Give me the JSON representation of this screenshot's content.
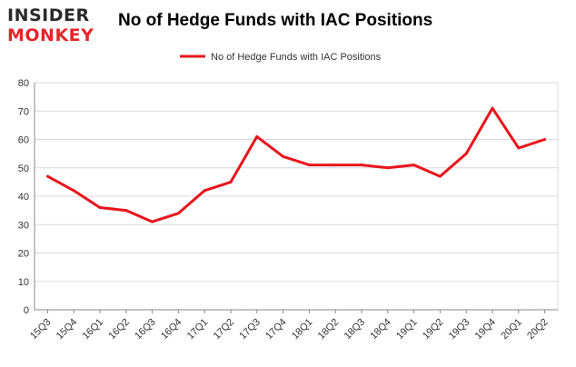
{
  "logo": {
    "top_text": "INSIDER",
    "bottom_text": "MONKEY"
  },
  "chart_data": {
    "type": "line",
    "title": "No of Hedge Funds with IAC Positions",
    "categories": [
      "15Q3",
      "15Q4",
      "16Q1",
      "16Q2",
      "16Q3",
      "16Q4",
      "17Q1",
      "17Q2",
      "17Q3",
      "17Q4",
      "18Q1",
      "18Q2",
      "18Q3",
      "18Q4",
      "19Q1",
      "19Q2",
      "19Q3",
      "19Q4",
      "20Q1",
      "20Q2"
    ],
    "series": [
      {
        "name": "No of Hedge Funds with IAC Positions",
        "values": [
          47,
          42,
          36,
          35,
          31,
          34,
          42,
          45,
          61,
          54,
          51,
          51,
          51,
          50,
          51,
          47,
          55,
          71,
          57,
          60
        ]
      }
    ],
    "ylim": [
      0,
      80
    ],
    "yticks": [
      0,
      10,
      20,
      30,
      40,
      50,
      60,
      70,
      80
    ],
    "grid": true,
    "legend": "top-center",
    "colors": {
      "line": "#e8141c",
      "grid": "#d9d9d9",
      "axis": "#888888"
    }
  }
}
